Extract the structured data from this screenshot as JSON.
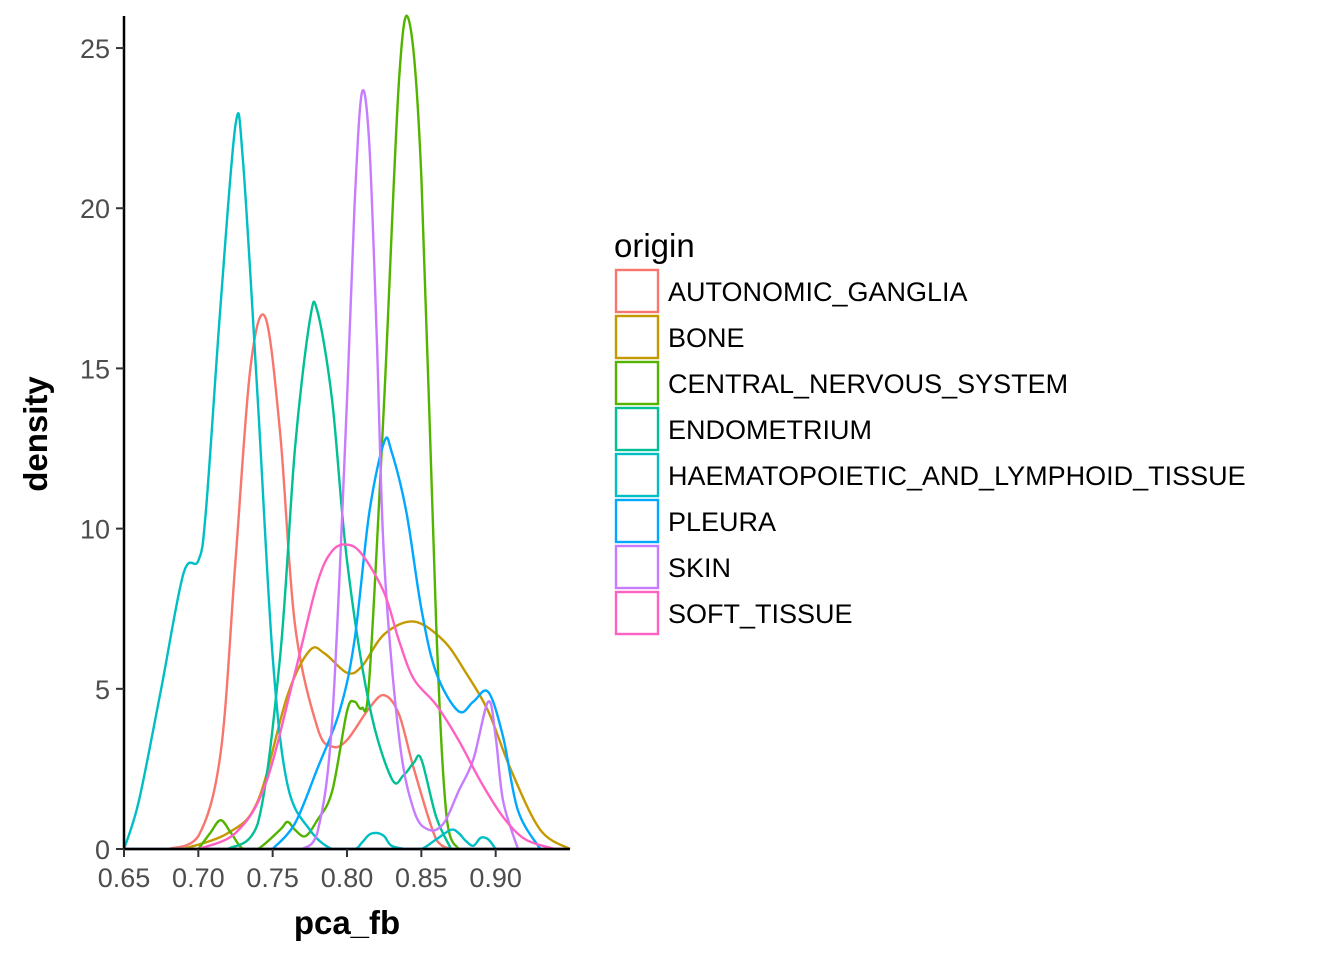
{
  "chart_data": {
    "type": "line",
    "xlabel": "pca_fb",
    "ylabel": "density",
    "xlim": [
      0.65,
      0.95
    ],
    "ylim": [
      0,
      26
    ],
    "x_ticks": [
      0.65,
      0.7,
      0.75,
      0.8,
      0.85,
      0.9
    ],
    "x_tick_labels": [
      "0.65",
      "0.70",
      "0.75",
      "0.80",
      "0.85",
      "0.90"
    ],
    "y_ticks": [
      0,
      5,
      10,
      15,
      20,
      25
    ],
    "y_tick_labels": [
      "0",
      "5",
      "10",
      "15",
      "20",
      "25"
    ],
    "grid": false,
    "legend": {
      "title": "origin",
      "position": "right"
    },
    "series": [
      {
        "name": "AUTONOMIC_GANGLIA",
        "color": "#F8766D",
        "x": [
          0.68,
          0.7,
          0.715,
          0.725,
          0.735,
          0.745,
          0.755,
          0.765,
          0.78,
          0.79,
          0.8,
          0.815,
          0.825,
          0.835,
          0.845,
          0.86,
          0.87
        ],
        "y": [
          0,
          0.4,
          3,
          9,
          15,
          16.6,
          13,
          7,
          3.8,
          3.2,
          3.4,
          4.4,
          4.8,
          4.2,
          2.5,
          0.3,
          0
        ]
      },
      {
        "name": "BONE",
        "color": "#C49A00",
        "x": [
          0.69,
          0.72,
          0.74,
          0.76,
          0.775,
          0.785,
          0.8,
          0.81,
          0.825,
          0.845,
          0.865,
          0.88,
          0.895,
          0.91,
          0.93,
          0.95
        ],
        "y": [
          0,
          0.5,
          1.5,
          4.8,
          6.2,
          6.1,
          5.5,
          5.7,
          6.7,
          7.1,
          6.5,
          5.5,
          4.3,
          2.5,
          0.6,
          0
        ]
      },
      {
        "name": "CENTRAL_NERVOUS_SYSTEM",
        "color": "#53B400",
        "x": [
          0.7,
          0.708,
          0.715,
          0.722,
          0.73,
          0.74,
          0.755,
          0.76,
          0.765,
          0.772,
          0.78,
          0.79,
          0.8,
          0.805,
          0.81,
          0.815,
          0.825,
          0.835,
          0.842,
          0.85,
          0.86,
          0.867,
          0.875
        ],
        "y": [
          0,
          0.5,
          0.9,
          0.5,
          0,
          0,
          0.6,
          0.85,
          0.6,
          0.4,
          0.9,
          1.8,
          4.3,
          4.6,
          4.4,
          5.3,
          14,
          24,
          25.8,
          21,
          7,
          1,
          0
        ]
      },
      {
        "name": "ENDOMETRIUM",
        "color": "#00C094",
        "x": [
          0.72,
          0.74,
          0.755,
          0.765,
          0.775,
          0.78,
          0.79,
          0.8,
          0.815,
          0.83,
          0.838,
          0.845,
          0.85,
          0.86,
          0.87
        ],
        "y": [
          0,
          0.8,
          6,
          12.5,
          16.5,
          16.8,
          14,
          9,
          4.5,
          2.2,
          2.3,
          2.7,
          2.8,
          1,
          0
        ]
      },
      {
        "name": "HAEMATOPOIETIC_AND_LYMPHOID_TISSUE",
        "color": "#00BFC4",
        "x": [
          0.65,
          0.66,
          0.675,
          0.69,
          0.7,
          0.705,
          0.715,
          0.725,
          0.73,
          0.74,
          0.75,
          0.76,
          0.775,
          0.79,
          0.805,
          0.81,
          0.815,
          0.82,
          0.825,
          0.83,
          0.84,
          0.85,
          0.86,
          0.87,
          0.875,
          0.88,
          0.885,
          0.89,
          0.895,
          0.9
        ],
        "y": [
          0,
          1.5,
          5,
          8.6,
          9,
          10.5,
          17,
          22.6,
          21.5,
          14,
          6,
          2,
          0.6,
          0,
          0,
          0.2,
          0.45,
          0.5,
          0.4,
          0.1,
          0,
          0,
          0.3,
          0.6,
          0.5,
          0.25,
          0.1,
          0.35,
          0.3,
          0
        ]
      },
      {
        "name": "PLEURA",
        "color": "#00A9FF",
        "x": [
          0.75,
          0.765,
          0.78,
          0.795,
          0.805,
          0.815,
          0.825,
          0.83,
          0.84,
          0.85,
          0.86,
          0.875,
          0.885,
          0.895,
          0.905,
          0.915,
          0.93
        ],
        "y": [
          0,
          0.8,
          2.5,
          4.3,
          6.5,
          10.5,
          12.7,
          12.4,
          10.5,
          7.5,
          5.5,
          4.3,
          4.6,
          4.9,
          3.5,
          1.2,
          0
        ]
      },
      {
        "name": "SKIN",
        "color": "#C77CFF",
        "x": [
          0.77,
          0.78,
          0.79,
          0.8,
          0.805,
          0.81,
          0.815,
          0.82,
          0.825,
          0.835,
          0.845,
          0.855,
          0.865,
          0.875,
          0.885,
          0.895,
          0.9,
          0.905,
          0.915
        ],
        "y": [
          0,
          0.5,
          4,
          14,
          20,
          23.6,
          22,
          16,
          9,
          3.5,
          1.2,
          0.6,
          0.8,
          1.8,
          2.8,
          4.6,
          3.5,
          1.5,
          0
        ]
      },
      {
        "name": "SOFT_TISSUE",
        "color": "#FF61C3",
        "x": [
          0.7,
          0.725,
          0.745,
          0.765,
          0.78,
          0.79,
          0.8,
          0.81,
          0.825,
          0.835,
          0.845,
          0.86,
          0.875,
          0.89,
          0.905,
          0.92,
          0.94
        ],
        "y": [
          0,
          0.5,
          2,
          5.5,
          8.3,
          9.3,
          9.5,
          9.2,
          8,
          6.5,
          5.3,
          4.5,
          3.4,
          2.1,
          1,
          0.3,
          0
        ]
      }
    ]
  }
}
